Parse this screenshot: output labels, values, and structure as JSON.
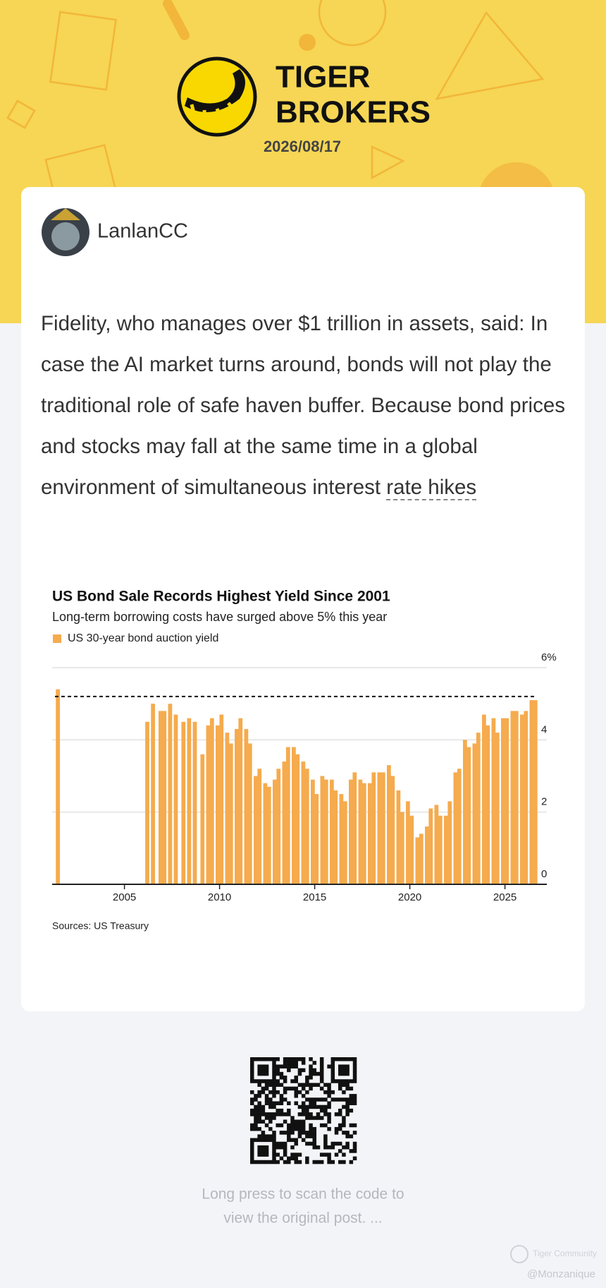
{
  "header": {
    "brand_line1": "TIGER",
    "brand_line2": "BROKERS",
    "date": "2026/08/17"
  },
  "post": {
    "author": "LanlanCC",
    "text": "Fidelity, who manages over $1 trillion in assets, said: In case the AI market turns around, bonds will not play the traditional role of safe haven buffer. Because bond prices and stocks may fall at the same time in a global environment of simultaneous interest ",
    "link": "rate hikes"
  },
  "chart_data": {
    "type": "bar",
    "title": "US Bond Sale Records Highest Yield Since 2001",
    "subtitle": "Long-term borrowing costs have surged above 5% this year",
    "x": [
      2001.5,
      2006.2,
      2006.5,
      2006.9,
      2007.1,
      2007.4,
      2007.7,
      2008.1,
      2008.4,
      2008.7,
      2009.1,
      2009.4,
      2009.6,
      2009.9,
      2010.1,
      2010.4,
      2010.6,
      2010.9,
      2011.1,
      2011.4,
      2011.6,
      2011.9,
      2012.1,
      2012.4,
      2012.6,
      2012.9,
      2013.1,
      2013.4,
      2013.6,
      2013.9,
      2014.1,
      2014.4,
      2014.6,
      2014.9,
      2015.1,
      2015.4,
      2015.6,
      2015.9,
      2016.1,
      2016.4,
      2016.6,
      2016.9,
      2017.1,
      2017.4,
      2017.6,
      2017.9,
      2018.1,
      2018.4,
      2018.6,
      2018.9,
      2019.1,
      2019.4,
      2019.6,
      2019.9,
      2020.1,
      2020.4,
      2020.6,
      2020.9,
      2021.1,
      2021.4,
      2021.6,
      2021.9,
      2022.1,
      2022.4,
      2022.6,
      2022.9,
      2023.1,
      2023.4,
      2023.6,
      2023.9,
      2024.1,
      2024.4,
      2024.6,
      2024.9,
      2025.1,
      2025.4,
      2025.6,
      2025.9,
      2026.1,
      2026.4,
      2026.6
    ],
    "series": [
      {
        "name": "US 30-year bond auction yield",
        "color": "#f5ab4e",
        "values": [
          5.4,
          4.5,
          5.0,
          4.8,
          4.8,
          5.0,
          4.7,
          4.5,
          4.6,
          4.5,
          3.6,
          4.4,
          4.6,
          4.4,
          4.7,
          4.2,
          3.9,
          4.3,
          4.6,
          4.3,
          3.9,
          3.0,
          3.2,
          2.8,
          2.7,
          2.9,
          3.2,
          3.4,
          3.8,
          3.8,
          3.6,
          3.4,
          3.2,
          2.9,
          2.5,
          3.0,
          2.9,
          2.9,
          2.6,
          2.5,
          2.3,
          2.9,
          3.1,
          2.9,
          2.8,
          2.8,
          3.1,
          3.1,
          3.1,
          3.3,
          3.0,
          2.6,
          2.0,
          2.3,
          1.9,
          1.3,
          1.4,
          1.6,
          2.1,
          2.2,
          1.9,
          1.9,
          2.3,
          3.1,
          3.2,
          4.0,
          3.8,
          3.9,
          4.2,
          4.7,
          4.4,
          4.6,
          4.2,
          4.6,
          4.6,
          4.8,
          4.8,
          4.7,
          4.8,
          5.1,
          5.1
        ]
      }
    ],
    "xlim": [
      2001.2,
      2027.2
    ],
    "xticks": [
      2005,
      2010,
      2015,
      2020,
      2025
    ],
    "ylim": [
      0,
      6
    ],
    "yticks": [
      0,
      2,
      4,
      {
        "value": 6,
        "label": "6%"
      }
    ],
    "grid": true,
    "reference_line": 5.2,
    "source": "Sources: US Treasury"
  },
  "footer": {
    "hint_line1": "Long press to scan the code to",
    "hint_line2": "view the original post. ...",
    "watermark": "Tiger Community",
    "handle": "@Monzanique"
  }
}
